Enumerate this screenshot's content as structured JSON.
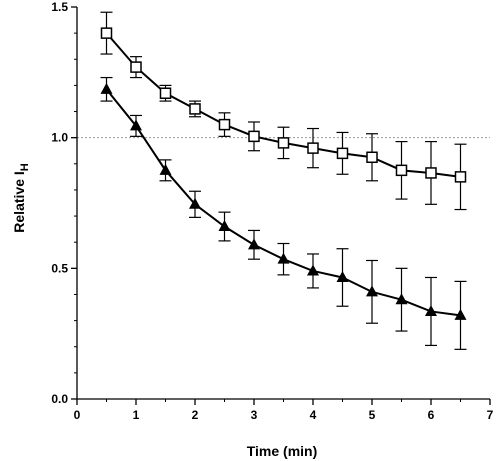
{
  "chart_data": {
    "type": "line",
    "xlabel": "Time (min)",
    "ylabel_main": "Relative I",
    "ylabel_sub": "H",
    "xlim": [
      0,
      7
    ],
    "ylim": [
      0.0,
      1.5
    ],
    "xticks": [
      0,
      1,
      2,
      3,
      4,
      5,
      6,
      7
    ],
    "xtick_labels": [
      "0",
      "1",
      "2",
      "3",
      "4",
      "5",
      "6",
      "7"
    ],
    "yticks": [
      0.0,
      0.5,
      1.0,
      1.5
    ],
    "ytick_labels": [
      "0.0",
      "0.5",
      "1.0",
      "1.5"
    ],
    "reference_line": {
      "y": 1.0,
      "style": "dotted",
      "color": "#999999"
    },
    "grid": false,
    "legend": "none",
    "series": [
      {
        "marker": "open-square",
        "color": "#000000",
        "x": [
          0.5,
          1.0,
          1.5,
          2.0,
          2.5,
          3.0,
          3.5,
          4.0,
          4.5,
          5.0,
          5.5,
          6.0,
          6.5
        ],
        "y": [
          1.4,
          1.27,
          1.17,
          1.11,
          1.05,
          1.005,
          0.98,
          0.96,
          0.94,
          0.925,
          0.875,
          0.865,
          0.85
        ],
        "err": [
          0.08,
          0.04,
          0.03,
          0.03,
          0.045,
          0.055,
          0.06,
          0.075,
          0.08,
          0.09,
          0.11,
          0.12,
          0.125
        ]
      },
      {
        "marker": "filled-triangle",
        "color": "#000000",
        "x": [
          0.5,
          1.0,
          1.5,
          2.0,
          2.5,
          3.0,
          3.5,
          4.0,
          4.5,
          5.0,
          5.5,
          6.0,
          6.5
        ],
        "y": [
          1.185,
          1.045,
          0.875,
          0.745,
          0.66,
          0.59,
          0.535,
          0.49,
          0.465,
          0.41,
          0.38,
          0.335,
          0.32
        ],
        "err": [
          0.045,
          0.04,
          0.04,
          0.05,
          0.055,
          0.055,
          0.06,
          0.065,
          0.11,
          0.12,
          0.12,
          0.13,
          0.13
        ]
      }
    ]
  }
}
